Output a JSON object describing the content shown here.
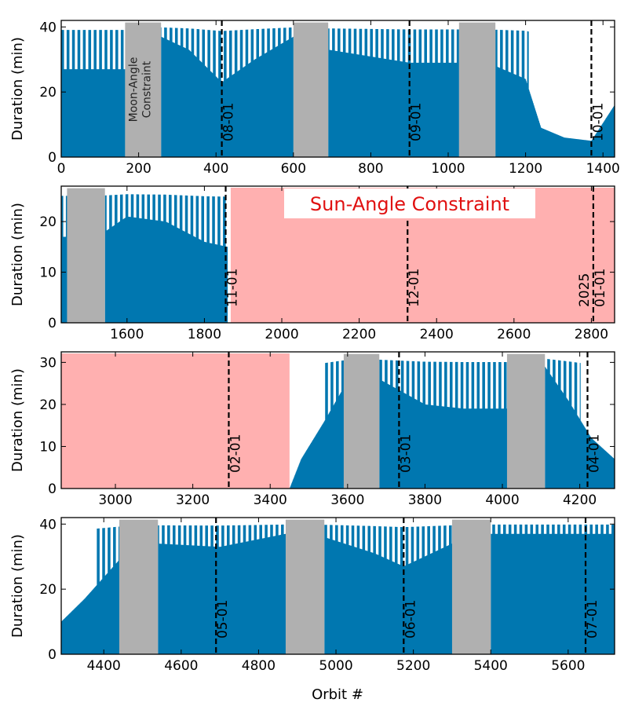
{
  "colors": {
    "bar": "#0077b0",
    "moon": "#b0b0b0",
    "sun": "#ffb0b0",
    "frame": "#000000",
    "annotation_red": "#e01010"
  },
  "chart_data": {
    "type": "bar",
    "xlabel": "Orbit #",
    "ylabel": "Duration (min)",
    "panels": [
      {
        "name": "panel-1",
        "xlim": [
          0,
          1430
        ],
        "ylim": [
          0,
          42
        ],
        "xticks": [
          0,
          200,
          400,
          600,
          800,
          1000,
          1200,
          1400
        ],
        "yticks": [
          0,
          20,
          40
        ],
        "moon_constraints": [
          [
            165,
            258
          ],
          [
            600,
            690
          ],
          [
            1028,
            1122
          ]
        ],
        "sun_constraints": [],
        "date_markers": [
          {
            "orbit": 415,
            "label": "08-01"
          },
          {
            "orbit": 900,
            "label": "09-01"
          },
          {
            "orbit": 1370,
            "label": "10-01"
          }
        ],
        "duration_profile": {
          "orbits": [
            0,
            165,
            258,
            330,
            415,
            500,
            600,
            690,
            900,
            1028,
            1122,
            1200,
            1240,
            1300,
            1370,
            1430
          ],
          "minutes": [
            27,
            27,
            37,
            33,
            23,
            30,
            37,
            33,
            29,
            29,
            28,
            24,
            9,
            6,
            5,
            16
          ]
        },
        "annotations": [
          {
            "text_lines": [
              "Moon-Angle",
              "Constraint"
            ],
            "anchor_orbit": 212
          }
        ]
      },
      {
        "name": "panel-2",
        "xlim": [
          1430,
          2860
        ],
        "ylim": [
          0,
          27
        ],
        "xticks": [
          1600,
          1800,
          2000,
          2200,
          2400,
          2600,
          2800
        ],
        "yticks": [
          0,
          10,
          20
        ],
        "moon_constraints": [
          [
            1445,
            1543
          ]
        ],
        "sun_constraints": [
          [
            1868,
            2860
          ]
        ],
        "date_markers": [
          {
            "orbit": 1855,
            "label": "11-01"
          },
          {
            "orbit": 2325,
            "label": "12-01"
          },
          {
            "orbit": 2805,
            "label": "01-01",
            "label2": "2025"
          }
        ],
        "duration_profile": {
          "orbits": [
            1430,
            1445,
            1543,
            1600,
            1700,
            1800,
            1860
          ],
          "minutes": [
            17,
            17,
            18,
            21,
            20,
            16,
            15
          ]
        },
        "annotations": [
          {
            "text": "Sun-Angle Constraint"
          }
        ]
      },
      {
        "name": "panel-3",
        "xlim": [
          2860,
          4290
        ],
        "ylim": [
          0,
          32.5
        ],
        "xticks": [
          3000,
          3200,
          3400,
          3600,
          3800,
          4000,
          4200
        ],
        "yticks": [
          0,
          10,
          20,
          30
        ],
        "moon_constraints": [
          [
            3590,
            3682
          ],
          [
            4012,
            4110
          ]
        ],
        "sun_constraints": [
          [
            2860,
            3450
          ]
        ],
        "date_markers": [
          {
            "orbit": 3293,
            "label": "02-01"
          },
          {
            "orbit": 3733,
            "label": "03-01"
          },
          {
            "orbit": 4220,
            "label": "04-01"
          }
        ],
        "duration_profile": {
          "orbits": [
            3450,
            3480,
            3540,
            3590,
            3682,
            3800,
            3900,
            4012,
            4110,
            4170,
            4230,
            4290
          ],
          "minutes": [
            0,
            7,
            16,
            24,
            26,
            20,
            19,
            19,
            29,
            21,
            12,
            7
          ]
        },
        "annotations": []
      },
      {
        "name": "panel-4",
        "xlim": [
          4290,
          5720
        ],
        "ylim": [
          0,
          42
        ],
        "xticks": [
          4400,
          4600,
          4800,
          5000,
          5200,
          5400,
          5600
        ],
        "yticks": [
          0,
          20,
          40
        ],
        "moon_constraints": [
          [
            4440,
            4540
          ],
          [
            4870,
            4970
          ],
          [
            5300,
            5400
          ]
        ],
        "sun_constraints": [],
        "date_markers": [
          {
            "orbit": 4690,
            "label": "05-01"
          },
          {
            "orbit": 5175,
            "label": "06-01"
          },
          {
            "orbit": 5645,
            "label": "07-01"
          }
        ],
        "duration_profile": {
          "orbits": [
            4290,
            4350,
            4440,
            4540,
            4700,
            4870,
            4970,
            5100,
            5175,
            5300,
            5400,
            5720
          ],
          "minutes": [
            10,
            17,
            29,
            34,
            33,
            37,
            36,
            31,
            27,
            34,
            37,
            37
          ]
        },
        "annotations": []
      }
    ]
  }
}
